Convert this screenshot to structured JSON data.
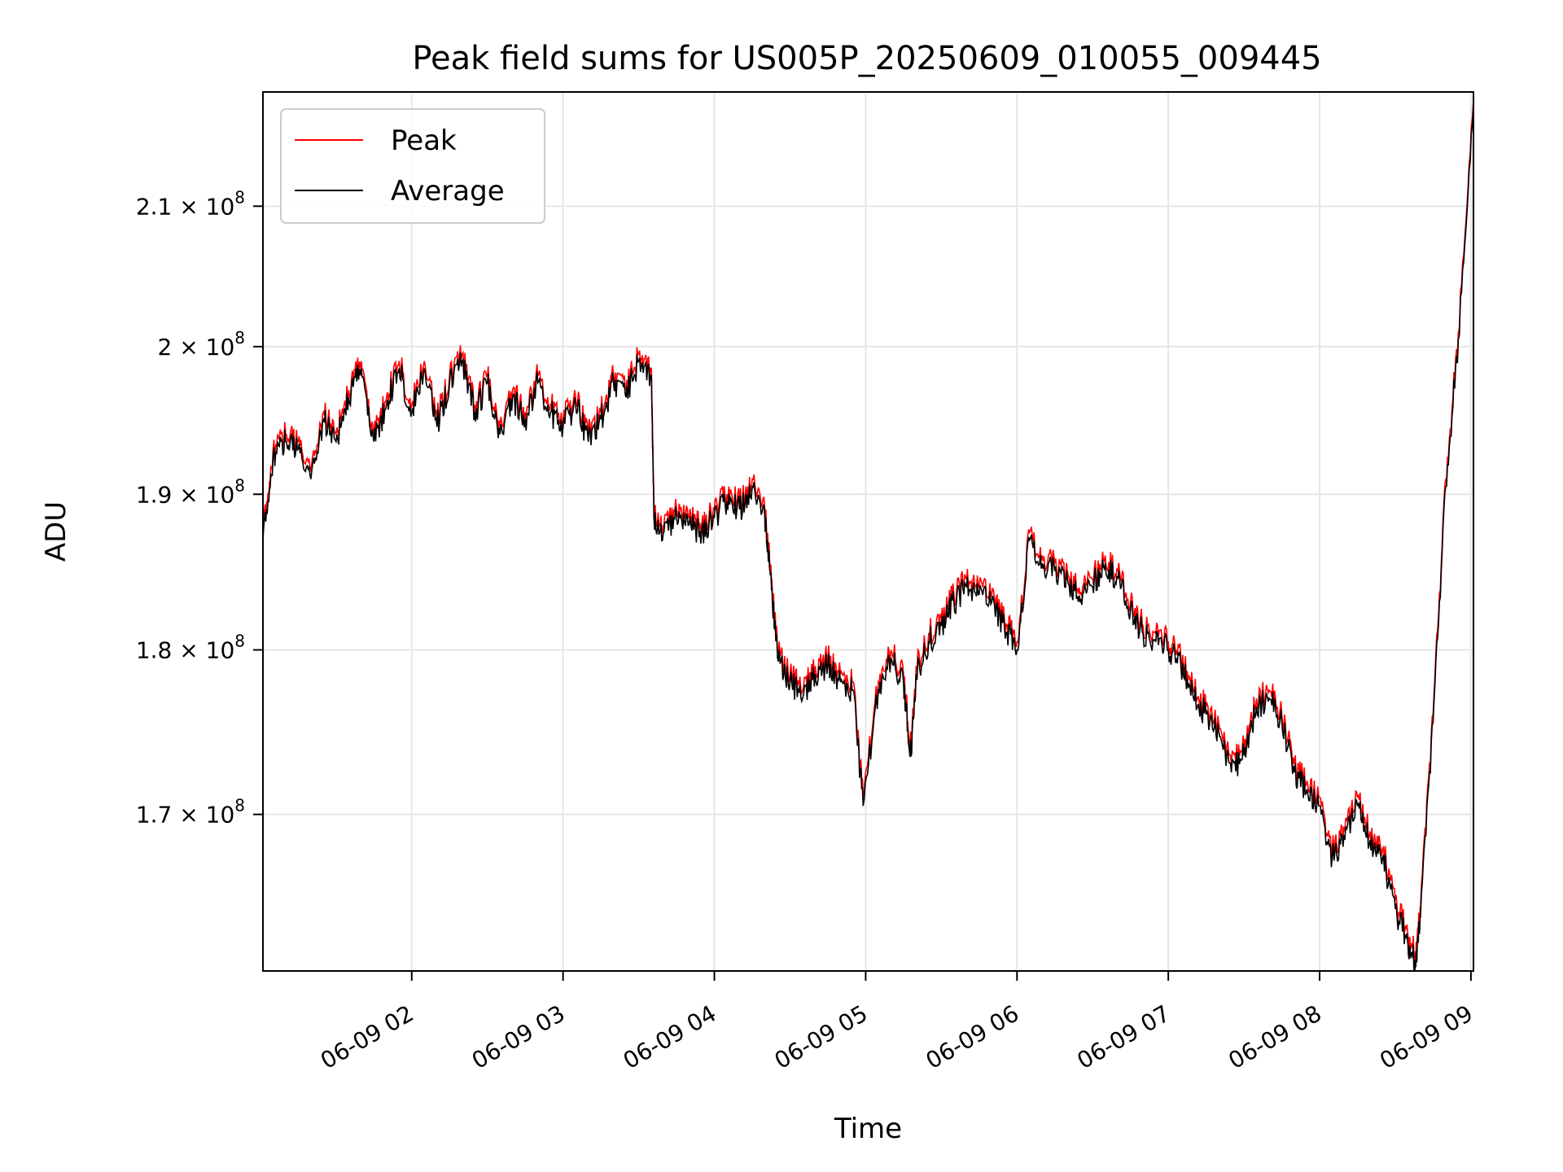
{
  "chart_data": {
    "type": "line",
    "title": "Peak field sums for US005P_20250609_010055_009445",
    "xlabel": "Time",
    "ylabel": "ADU",
    "y_scale": "log",
    "grid": true,
    "legend_position": "top-left",
    "xlim": [
      "2025-06-09 01:01",
      "2025-06-09 09:01"
    ],
    "ylim": [
      161000000,
      218500000
    ],
    "x_ticks": [
      {
        "value": "2025-06-09 02:00",
        "label": "06-09 02"
      },
      {
        "value": "2025-06-09 03:00",
        "label": "06-09 03"
      },
      {
        "value": "2025-06-09 04:00",
        "label": "06-09 04"
      },
      {
        "value": "2025-06-09 05:00",
        "label": "06-09 05"
      },
      {
        "value": "2025-06-09 06:00",
        "label": "06-09 06"
      },
      {
        "value": "2025-06-09 07:00",
        "label": "06-09 07"
      },
      {
        "value": "2025-06-09 08:00",
        "label": "06-09 08"
      },
      {
        "value": "2025-06-09 09:00",
        "label": "06-09 09"
      }
    ],
    "y_ticks": [
      {
        "value": 170000000,
        "mantissa": "1.7",
        "exponent": "8"
      },
      {
        "value": 180000000,
        "mantissa": "1.8",
        "exponent": "8"
      },
      {
        "value": 190000000,
        "mantissa": "1.9",
        "exponent": "8"
      },
      {
        "value": 200000000,
        "mantissa": "2",
        "exponent": "8"
      },
      {
        "value": 210000000,
        "mantissa": "2.1",
        "exponent": "8"
      }
    ],
    "series": [
      {
        "name": "Peak",
        "color": "#ff0000"
      },
      {
        "name": "Average",
        "color": "#000000"
      }
    ],
    "x": [
      "2025-06-09 01:01",
      "2025-06-09 01:05",
      "2025-06-09 01:10",
      "2025-06-09 01:15",
      "2025-06-09 01:20",
      "2025-06-09 01:25",
      "2025-06-09 01:30",
      "2025-06-09 01:35",
      "2025-06-09 01:40",
      "2025-06-09 01:45",
      "2025-06-09 01:50",
      "2025-06-09 01:55",
      "2025-06-09 02:00",
      "2025-06-09 02:05",
      "2025-06-09 02:10",
      "2025-06-09 02:15",
      "2025-06-09 02:20",
      "2025-06-09 02:25",
      "2025-06-09 02:30",
      "2025-06-09 02:35",
      "2025-06-09 02:40",
      "2025-06-09 02:45",
      "2025-06-09 02:50",
      "2025-06-09 02:55",
      "2025-06-09 03:00",
      "2025-06-09 03:05",
      "2025-06-09 03:10",
      "2025-06-09 03:15",
      "2025-06-09 03:20",
      "2025-06-09 03:25",
      "2025-06-09 03:30",
      "2025-06-09 03:35",
      "2025-06-09 03:36",
      "2025-06-09 03:40",
      "2025-06-09 03:45",
      "2025-06-09 03:50",
      "2025-06-09 03:55",
      "2025-06-09 04:00",
      "2025-06-09 04:05",
      "2025-06-09 04:10",
      "2025-06-09 04:15",
      "2025-06-09 04:20",
      "2025-06-09 04:22",
      "2025-06-09 04:25",
      "2025-06-09 04:30",
      "2025-06-09 04:35",
      "2025-06-09 04:40",
      "2025-06-09 04:45",
      "2025-06-09 04:50",
      "2025-06-09 04:55",
      "2025-06-09 04:59",
      "2025-06-09 05:05",
      "2025-06-09 05:10",
      "2025-06-09 05:15",
      "2025-06-09 05:18",
      "2025-06-09 05:20",
      "2025-06-09 05:25",
      "2025-06-09 05:30",
      "2025-06-09 05:35",
      "2025-06-09 05:40",
      "2025-06-09 05:45",
      "2025-06-09 05:50",
      "2025-06-09 05:55",
      "2025-06-09 06:00",
      "2025-06-09 06:05",
      "2025-06-09 06:10",
      "2025-06-09 06:15",
      "2025-06-09 06:20",
      "2025-06-09 06:25",
      "2025-06-09 06:30",
      "2025-06-09 06:35",
      "2025-06-09 06:40",
      "2025-06-09 06:45",
      "2025-06-09 06:50",
      "2025-06-09 06:55",
      "2025-06-09 07:00",
      "2025-06-09 07:05",
      "2025-06-09 07:10",
      "2025-06-09 07:15",
      "2025-06-09 07:20",
      "2025-06-09 07:25",
      "2025-06-09 07:30",
      "2025-06-09 07:35",
      "2025-06-09 07:40",
      "2025-06-09 07:45",
      "2025-06-09 07:50",
      "2025-06-09 07:55",
      "2025-06-09 08:00",
      "2025-06-09 08:05",
      "2025-06-09 08:10",
      "2025-06-09 08:15",
      "2025-06-09 08:20",
      "2025-06-09 08:25",
      "2025-06-09 08:30",
      "2025-06-09 08:35",
      "2025-06-09 08:38",
      "2025-06-09 08:40",
      "2025-06-09 08:45",
      "2025-06-09 08:50",
      "2025-06-09 08:55",
      "2025-06-09 09:01"
    ],
    "average": [
      187000000,
      192500000,
      193500000,
      193000000,
      191000000,
      195000000,
      193500000,
      196500000,
      198500000,
      193500000,
      196000000,
      198500000,
      195500000,
      198500000,
      194500000,
      197500000,
      199000000,
      195500000,
      197500000,
      194000000,
      196500000,
      195000000,
      197500000,
      195500000,
      194500000,
      196000000,
      193500000,
      195000000,
      197500000,
      196500000,
      199000000,
      198000000,
      188500000,
      187500000,
      188500000,
      188000000,
      187500000,
      188500000,
      189500000,
      189000000,
      190500000,
      188500000,
      185000000,
      179500000,
      178000000,
      177000000,
      178500000,
      179000000,
      178000000,
      177500000,
      170500000,
      177500000,
      179500000,
      178000000,
      173500000,
      178500000,
      180500000,
      181500000,
      183000000,
      184000000,
      183500000,
      183000000,
      181500000,
      180000000,
      187000000,
      185500000,
      185000000,
      184500000,
      183000000,
      184000000,
      185500000,
      184500000,
      182500000,
      181000000,
      180500000,
      180000000,
      179000000,
      177000000,
      176000000,
      175000000,
      172500000,
      173500000,
      176500000,
      177000000,
      175500000,
      172500000,
      171500000,
      170500000,
      167500000,
      168500000,
      170500000,
      168500000,
      167500000,
      164500000,
      162500000,
      161500000,
      164000000,
      175500000,
      190500000,
      200500000,
      217500000
    ],
    "peak": [
      187500000,
      193000000,
      194000000,
      193500000,
      191500000,
      195500000,
      194000000,
      197000000,
      199000000,
      194000000,
      196500000,
      199000000,
      196000000,
      199000000,
      195000000,
      198000000,
      199500000,
      196000000,
      198000000,
      194500000,
      197000000,
      195500000,
      198000000,
      196000000,
      195000000,
      196500000,
      194000000,
      195500000,
      198000000,
      197000000,
      199500000,
      198500000,
      189000000,
      188000000,
      189000000,
      188500000,
      188000000,
      189000000,
      190000000,
      189500000,
      191000000,
      189000000,
      185500000,
      180000000,
      178500000,
      177500000,
      179000000,
      179500000,
      178500000,
      178000000,
      171000000,
      178000000,
      180000000,
      178500000,
      174000000,
      179000000,
      181000000,
      182000000,
      183500000,
      184500000,
      184000000,
      183500000,
      182000000,
      180500000,
      187500000,
      186000000,
      185500000,
      185000000,
      183500000,
      184500000,
      186000000,
      185000000,
      183000000,
      181500000,
      181000000,
      180500000,
      179500000,
      177500000,
      176500000,
      175500000,
      173000000,
      174000000,
      177000000,
      177500000,
      176000000,
      173000000,
      172000000,
      171000000,
      168000000,
      169000000,
      171000000,
      169000000,
      168000000,
      165000000,
      163000000,
      162000000,
      164500000,
      176000000,
      191000000,
      201000000,
      218000000
    ]
  }
}
